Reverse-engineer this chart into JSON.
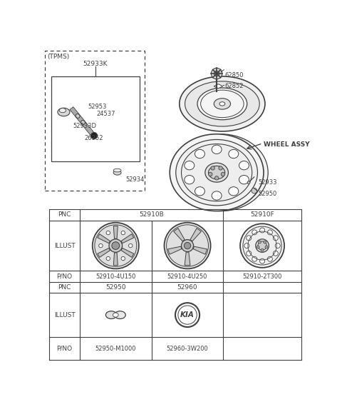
{
  "bg_color": "#ffffff",
  "line_color": "#404040",
  "tpms_label": "(TPMS)",
  "tpms_box_label": "52933K",
  "part_52934_label": "52934",
  "part_62850_label": "62850",
  "part_62852_label": "62852",
  "wheel_assy_label": "WHEEL ASSY",
  "part_52933_label": "52933",
  "part_52950_label": "52950",
  "label_52953": "52953",
  "label_24537": "24537",
  "label_52933D": "52933D",
  "label_26352": "26352",
  "pnc1": "52910B",
  "pnc2": "52910F",
  "pno1": "52910-4U150",
  "pno2": "52910-4U250",
  "pno3": "52910-2T300",
  "pnc3": "52950",
  "pnc4": "52960",
  "pno4": "52950-M1000",
  "pno5": "52960-3W200"
}
